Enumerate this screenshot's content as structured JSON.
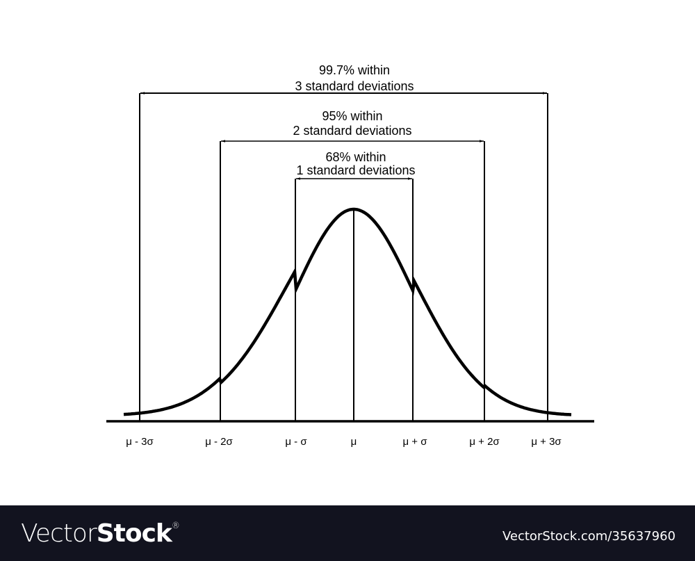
{
  "diagram": {
    "ranges": [
      {
        "line1": "99.7% within",
        "line2": "3 standard deviations",
        "k": 3
      },
      {
        "line1": "95% within",
        "line2": "2 standard deviations",
        "k": 2
      },
      {
        "line1": "68% within",
        "line2": "1 standard deviations",
        "k": 1
      }
    ],
    "axis_labels": [
      "μ - 3σ",
      "μ - 2σ",
      "μ - σ",
      "μ",
      "μ + σ",
      "μ + 2σ",
      "μ + 3σ"
    ],
    "curve": "normal distribution bell curve",
    "stroke_color": "#000000"
  },
  "footer": {
    "logo_light": "Vector",
    "logo_bold": "Stock",
    "logo_mark": "®",
    "url": "VectorStock.com/35637960",
    "background": "#12131f"
  }
}
